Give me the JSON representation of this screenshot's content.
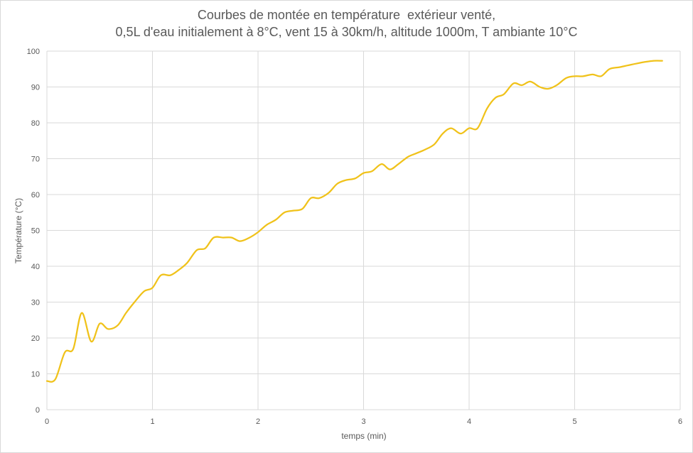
{
  "chart_data": {
    "type": "line",
    "title": "Courbes de montée en température  extérieur venté,",
    "subtitle": "0,5L d'eau initialement à 8°C, vent 15 à 30km/h, altitude 1000m, T ambiante 10°C",
    "xlabel": "temps (min)",
    "ylabel": "Température  (°C)",
    "xlim": [
      0,
      6
    ],
    "ylim": [
      0,
      100
    ],
    "xticks": [
      0,
      1,
      2,
      3,
      4,
      5,
      6
    ],
    "yticks": [
      0,
      10,
      20,
      30,
      40,
      50,
      60,
      70,
      80,
      90,
      100
    ],
    "grid": true,
    "legend": "none",
    "series": [
      {
        "color": "#f0c21a",
        "x": [
          0,
          0.08,
          0.17,
          0.25,
          0.33,
          0.42,
          0.5,
          0.58,
          0.67,
          0.75,
          0.83,
          0.92,
          1.0,
          1.08,
          1.17,
          1.25,
          1.33,
          1.42,
          1.5,
          1.58,
          1.67,
          1.75,
          1.83,
          1.92,
          2.0,
          2.08,
          2.17,
          2.25,
          2.33,
          2.42,
          2.5,
          2.58,
          2.67,
          2.75,
          2.83,
          2.92,
          3.0,
          3.08,
          3.17,
          3.25,
          3.33,
          3.42,
          3.5,
          3.58,
          3.67,
          3.75,
          3.83,
          3.92,
          4.0,
          4.08,
          4.17,
          4.25,
          4.33,
          4.42,
          4.5,
          4.58,
          4.67,
          4.75,
          4.83,
          4.92,
          5.0,
          5.08,
          5.17,
          5.25,
          5.33,
          5.42,
          5.5,
          5.58,
          5.67,
          5.75,
          5.83
        ],
        "y": [
          8,
          8.5,
          16,
          17,
          27,
          19,
          24,
          22.5,
          23.5,
          27,
          30,
          33,
          34,
          37.5,
          37.5,
          39,
          41,
          44.5,
          45,
          48,
          48,
          48,
          47,
          48,
          49.5,
          51.5,
          53,
          55,
          55.5,
          56,
          59,
          59,
          60.5,
          63,
          64,
          64.5,
          66,
          66.5,
          68.5,
          67,
          68.5,
          70.5,
          71.5,
          72.5,
          74,
          77,
          78.5,
          77,
          78.5,
          78.5,
          84,
          87,
          88,
          91,
          90.5,
          91.5,
          90,
          89.5,
          90.5,
          92.5,
          93,
          93,
          93.5,
          93,
          95,
          95.5,
          96,
          96.5,
          97,
          97.3,
          97.3
        ]
      }
    ]
  }
}
